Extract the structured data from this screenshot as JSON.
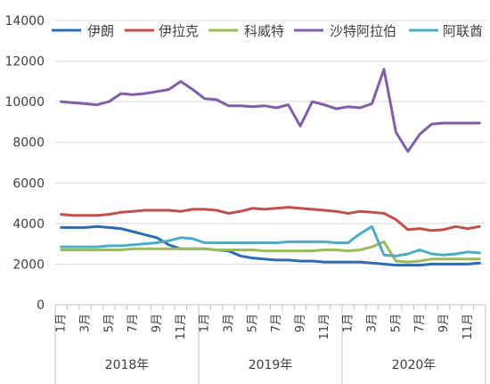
{
  "chart_data": {
    "type": "line",
    "title": "",
    "xlabel": "",
    "ylabel": "",
    "ylim": [
      0,
      14000
    ],
    "yticks": [
      0,
      2000,
      4000,
      6000,
      8000,
      10000,
      12000,
      14000
    ],
    "grid": true,
    "legend_position": "top",
    "x": [
      "2018-01",
      "2018-02",
      "2018-03",
      "2018-04",
      "2018-05",
      "2018-06",
      "2018-07",
      "2018-08",
      "2018-09",
      "2018-10",
      "2018-11",
      "2018-12",
      "2019-01",
      "2019-02",
      "2019-03",
      "2019-04",
      "2019-05",
      "2019-06",
      "2019-07",
      "2019-08",
      "2019-09",
      "2019-10",
      "2019-11",
      "2019-12",
      "2020-01",
      "2020-02",
      "2020-03",
      "2020-04",
      "2020-05",
      "2020-06",
      "2020-07",
      "2020-08",
      "2020-09",
      "2020-10",
      "2020-11",
      "2020-12"
    ],
    "month_labels": [
      "1月",
      "3月",
      "5月",
      "7月",
      "9月",
      "11月",
      "1月",
      "3月",
      "5月",
      "7月",
      "9月",
      "11月",
      "1月",
      "3月",
      "5月",
      "7月",
      "9月",
      "11月"
    ],
    "month_label_x_index": [
      0,
      2,
      4,
      6,
      8,
      10,
      12,
      14,
      16,
      18,
      20,
      22,
      24,
      26,
      28,
      30,
      32,
      34
    ],
    "year_labels": [
      "2018年",
      "2019年",
      "2020年"
    ],
    "series": [
      {
        "name": "伊朗",
        "color": "#2e6bb4",
        "values": [
          3800,
          3800,
          3800,
          3850,
          3800,
          3750,
          3600,
          3450,
          3300,
          2950,
          2750,
          2750,
          2750,
          2700,
          2650,
          2400,
          2300,
          2250,
          2200,
          2200,
          2150,
          2150,
          2100,
          2100,
          2100,
          2100,
          2050,
          2000,
          1950,
          1950,
          1950,
          2000,
          2000,
          2000,
          2000,
          2050
        ]
      },
      {
        "name": "伊拉克",
        "color": "#c0504d",
        "values": [
          4450,
          4400,
          4400,
          4400,
          4450,
          4550,
          4600,
          4650,
          4650,
          4650,
          4600,
          4700,
          4700,
          4650,
          4500,
          4600,
          4750,
          4700,
          4750,
          4800,
          4750,
          4700,
          4650,
          4600,
          4500,
          4600,
          4550,
          4500,
          4200,
          3700,
          3750,
          3650,
          3700,
          3850,
          3750,
          3850
        ]
      },
      {
        "name": "科威特",
        "color": "#9bbb59",
        "values": [
          2700,
          2700,
          2700,
          2700,
          2700,
          2700,
          2750,
          2750,
          2750,
          2750,
          2750,
          2750,
          2750,
          2700,
          2700,
          2700,
          2700,
          2650,
          2650,
          2650,
          2650,
          2650,
          2700,
          2700,
          2650,
          2700,
          2850,
          3100,
          2150,
          2100,
          2150,
          2250,
          2250,
          2250,
          2250,
          2250
        ]
      },
      {
        "name": "沙特阿拉伯",
        "color": "#7f5fa8",
        "values": [
          10000,
          9950,
          9900,
          9850,
          10000,
          10400,
          10350,
          10400,
          10500,
          10600,
          11000,
          10600,
          10150,
          10100,
          9800,
          9800,
          9750,
          9800,
          9700,
          9850,
          8800,
          10000,
          9850,
          9650,
          9750,
          9700,
          9900,
          11600,
          8500,
          7550,
          8400,
          8900,
          8950,
          8950,
          8950,
          8950
        ]
      },
      {
        "name": "阿联酋",
        "color": "#4bacc6",
        "values": [
          2850,
          2850,
          2850,
          2850,
          2900,
          2900,
          2950,
          3000,
          3050,
          3150,
          3300,
          3250,
          3050,
          3050,
          3050,
          3050,
          3050,
          3050,
          3050,
          3100,
          3100,
          3100,
          3100,
          3050,
          3050,
          3500,
          3850,
          2450,
          2400,
          2500,
          2700,
          2500,
          2450,
          2500,
          2600,
          2550
        ]
      }
    ]
  }
}
